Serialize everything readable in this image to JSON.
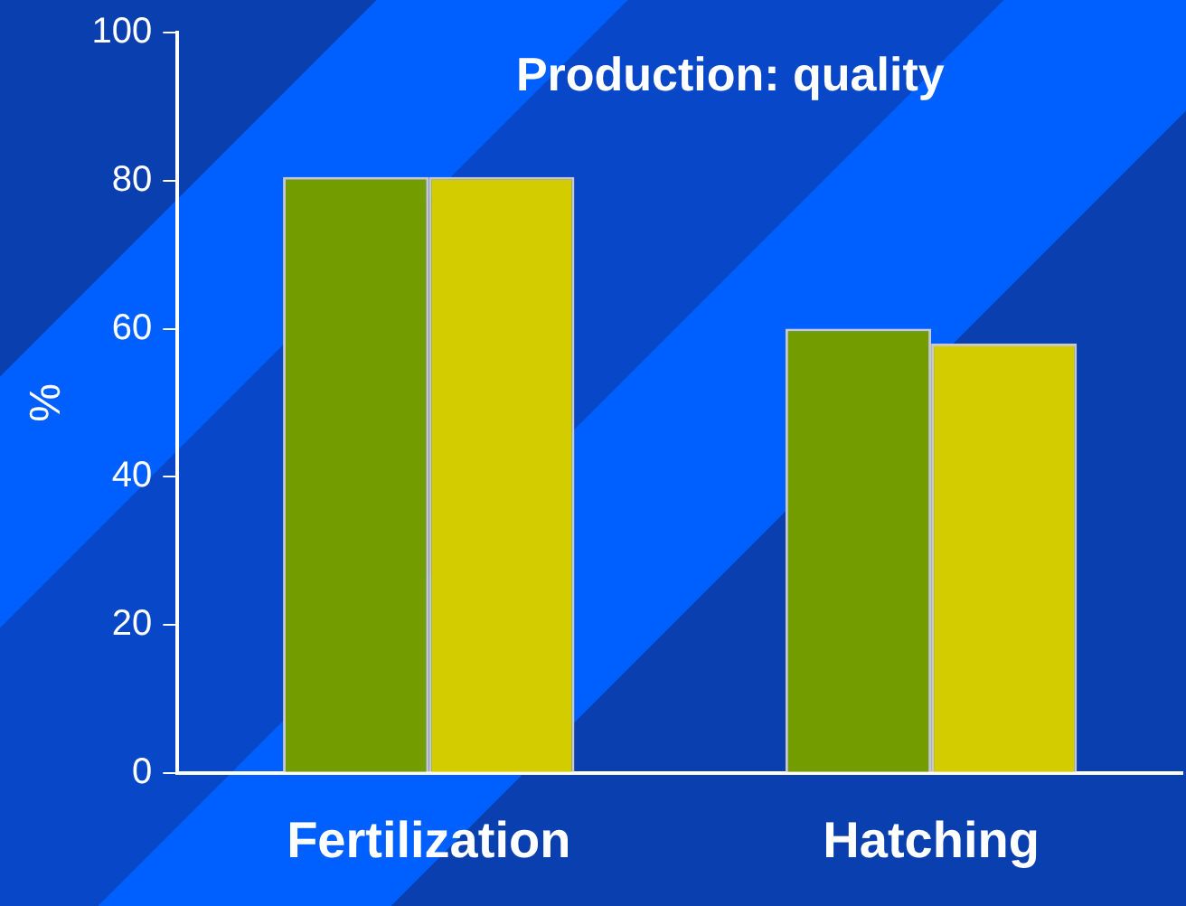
{
  "chart_data": {
    "type": "bar",
    "title": "Production: quality",
    "ylabel": "%",
    "categories": [
      "Fertilization",
      "Hatching"
    ],
    "series": [
      {
        "color": "#739c00",
        "values": [
          80.5,
          60
        ]
      },
      {
        "color": "#d2cc00",
        "values": [
          80.5,
          58
        ]
      }
    ],
    "ylim": [
      0,
      100
    ],
    "yticks": [
      0,
      20,
      40,
      60,
      80,
      100
    ],
    "grid": false,
    "legend": false
  }
}
